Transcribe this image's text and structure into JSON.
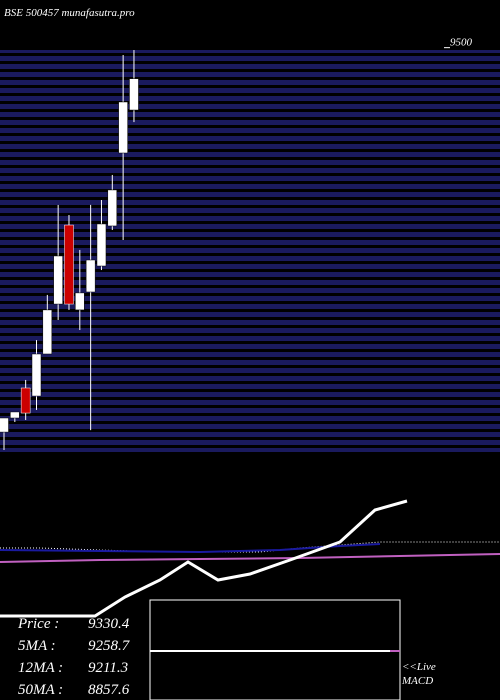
{
  "chart_data": {
    "type": "candlestick",
    "title": "BSE 500457 munafasutra.pro",
    "ylim": [
      7300,
      9520
    ],
    "yticks": [
      9500
    ],
    "up_color": "#ffffff",
    "down_color": "#cc0000",
    "open": [
      7398,
      7475,
      7639,
      7595,
      7825,
      8098,
      8530,
      8066,
      8164,
      8306,
      8525,
      8924,
      9159
    ],
    "high": [
      7475,
      7508,
      7683,
      7901,
      8148,
      8640,
      8585,
      8394,
      8640,
      8667,
      8804,
      9460,
      9487
    ],
    "low": [
      7300,
      7453,
      7464,
      7519,
      7825,
      8011,
      8066,
      7956,
      7409,
      8284,
      8503,
      8448,
      9093
    ],
    "close": [
      7475,
      7508,
      7502,
      7825,
      8066,
      8361,
      8098,
      8159,
      8339,
      8536,
      8722,
      9203,
      9330.4
    ],
    "stats": [
      {
        "label": "Price  :",
        "value": 9330.4
      },
      {
        "label": "5MA :",
        "value": 9258.7
      },
      {
        "label": "12MA :",
        "value": 9211.3
      },
      {
        "label": "50MA :",
        "value": 8857.6
      }
    ],
    "live_link": "<<Live",
    "macd_label": "MACD"
  }
}
